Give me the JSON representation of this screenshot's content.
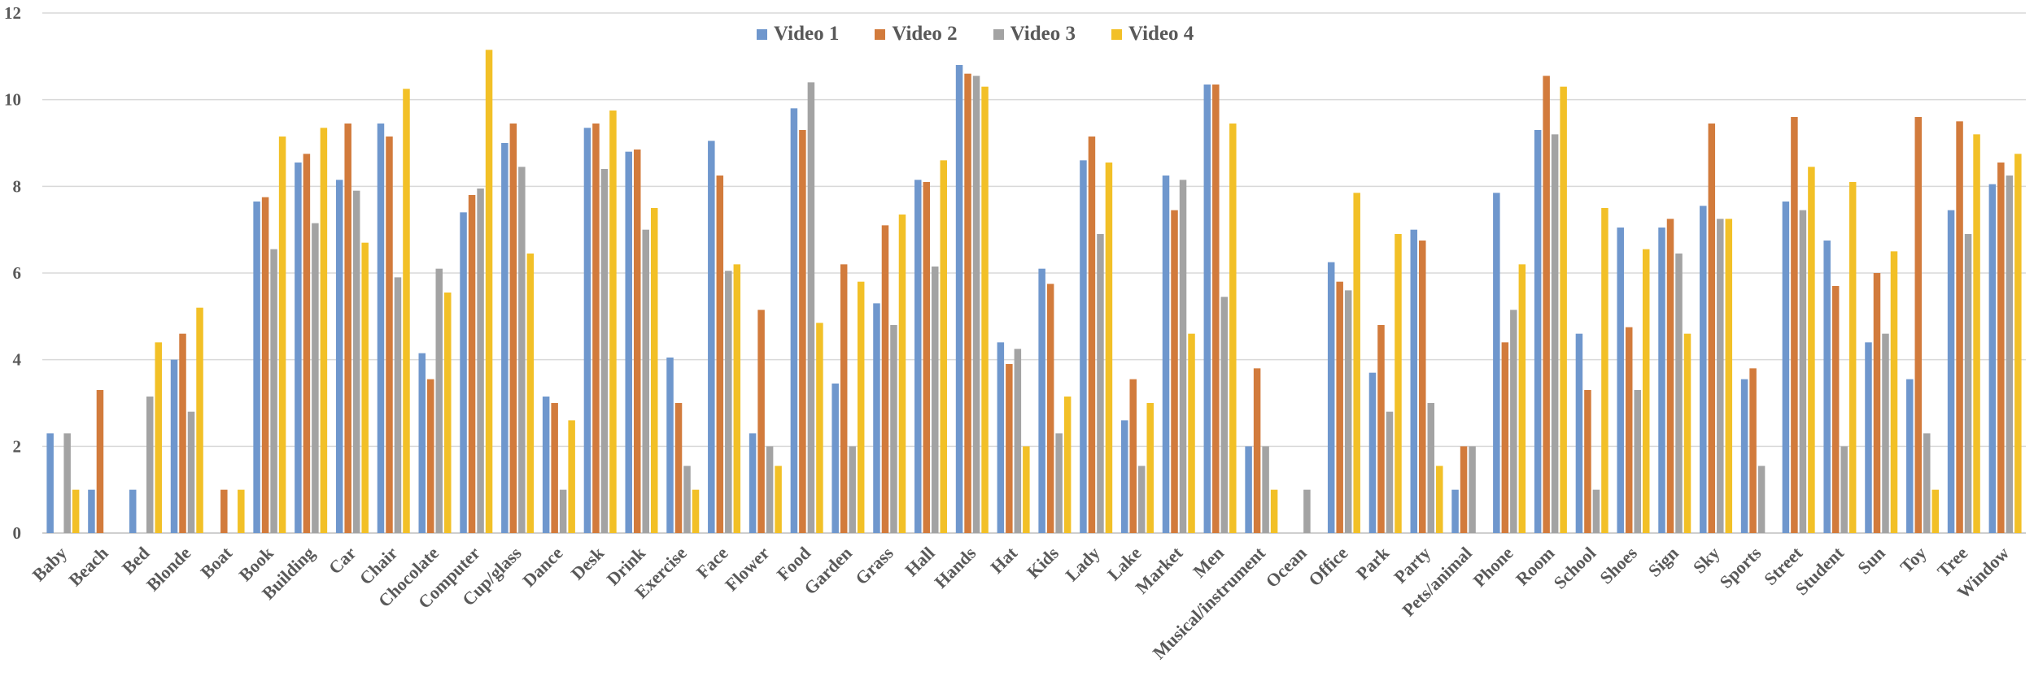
{
  "chart_data": {
    "type": "bar",
    "title": "",
    "xlabel": "",
    "ylabel": "",
    "ylim": [
      0,
      12
    ],
    "yticks": [
      0,
      2,
      4,
      6,
      8,
      10,
      12
    ],
    "grid": true,
    "legend_position": "top-center",
    "categories": [
      "Baby",
      "Beach",
      "Bed",
      "Blonde",
      "Boat",
      "Book",
      "Building",
      "Car",
      "Chair",
      "Chocolate",
      "Computer",
      "Cup/glass",
      "Dance",
      "Desk",
      "Drink",
      "Exercise",
      "Face",
      "Flower",
      "Food",
      "Garden",
      "Grass",
      "Hall",
      "Hands",
      "Hat",
      "Kids",
      "Lady",
      "Lake",
      "Market",
      "Men",
      "Musical/instrument",
      "Ocean",
      "Office",
      "Park",
      "Party",
      "Pets/animal",
      "Phone",
      "Room",
      "School",
      "Shoes",
      "Sign",
      "Sky",
      "Sports",
      "Street",
      "Student",
      "Sun",
      "Toy",
      "Tree",
      "Window"
    ],
    "series": [
      {
        "name": "Video 1",
        "color": "#6F97CD",
        "values": [
          2.3,
          1.0,
          1.0,
          4.0,
          0.0,
          7.65,
          8.55,
          8.15,
          9.45,
          4.15,
          7.4,
          9.0,
          3.15,
          9.35,
          8.8,
          4.05,
          9.05,
          2.3,
          9.8,
          3.45,
          5.3,
          8.15,
          10.8,
          4.4,
          6.1,
          8.6,
          2.6,
          8.25,
          10.35,
          2.0,
          0.0,
          6.25,
          3.7,
          7.0,
          1.0,
          7.85,
          9.3,
          4.6,
          7.05,
          7.05,
          7.55,
          3.55,
          7.65,
          6.75,
          4.4,
          3.55,
          7.45,
          8.05
        ]
      },
      {
        "name": "Video 2",
        "color": "#D27B3C",
        "values": [
          0.0,
          3.3,
          0.0,
          4.6,
          1.0,
          7.75,
          8.75,
          9.45,
          9.15,
          3.55,
          7.8,
          9.45,
          3.0,
          9.45,
          8.85,
          3.0,
          8.25,
          5.15,
          9.3,
          6.2,
          7.1,
          8.1,
          10.6,
          3.9,
          5.75,
          9.15,
          3.55,
          7.45,
          10.35,
          3.8,
          0.0,
          5.8,
          4.8,
          6.75,
          2.0,
          4.4,
          10.55,
          3.3,
          4.75,
          7.25,
          9.45,
          3.8,
          9.6,
          5.7,
          6.0,
          9.6,
          9.5,
          8.55
        ]
      },
      {
        "name": "Video 3",
        "color": "#A3A3A3",
        "values": [
          2.3,
          0.0,
          3.15,
          2.8,
          0.0,
          6.55,
          7.15,
          7.9,
          5.9,
          6.1,
          7.95,
          8.45,
          1.0,
          8.4,
          7.0,
          1.55,
          6.05,
          2.0,
          10.4,
          2.0,
          4.8,
          6.15,
          10.55,
          4.25,
          2.3,
          6.9,
          1.55,
          8.15,
          5.45,
          2.0,
          1.0,
          5.6,
          2.8,
          3.0,
          2.0,
          5.15,
          9.2,
          1.0,
          3.3,
          6.45,
          7.25,
          1.55,
          7.45,
          2.0,
          4.6,
          2.3,
          6.9,
          8.25
        ]
      },
      {
        "name": "Video 4",
        "color": "#F2C027",
        "values": [
          1.0,
          0.0,
          4.4,
          5.2,
          1.0,
          9.15,
          9.35,
          6.7,
          10.25,
          5.55,
          11.15,
          6.45,
          2.6,
          9.75,
          7.5,
          1.0,
          6.2,
          1.55,
          4.85,
          5.8,
          7.35,
          8.6,
          10.3,
          2.0,
          3.15,
          8.55,
          3.0,
          4.6,
          9.45,
          1.0,
          0.0,
          7.85,
          6.9,
          1.55,
          0.0,
          6.2,
          10.3,
          7.5,
          6.55,
          4.6,
          7.25,
          0.0,
          8.45,
          8.1,
          6.5,
          1.0,
          9.2,
          8.75
        ]
      }
    ]
  }
}
